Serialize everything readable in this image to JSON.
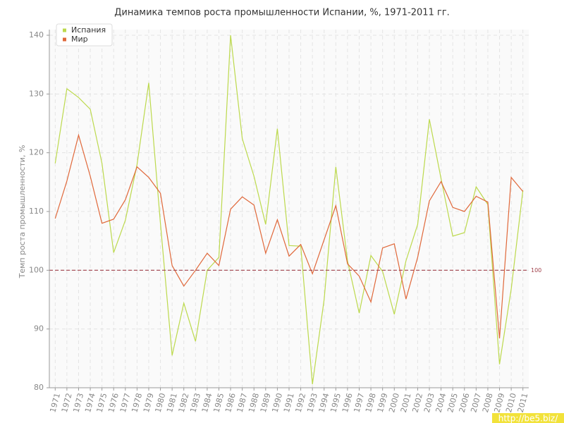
{
  "chart_data": {
    "type": "line",
    "title": "Динамика темпов роста промышленности Испании, %, 1971-2011 гг.",
    "y_label": "Темп роста промышленности, %",
    "x": [
      1971,
      1972,
      1973,
      1974,
      1975,
      1976,
      1977,
      1978,
      1979,
      1980,
      1981,
      1982,
      1983,
      1984,
      1985,
      1986,
      1987,
      1988,
      1989,
      1990,
      1991,
      1992,
      1993,
      1994,
      1995,
      1996,
      1997,
      1998,
      1999,
      2000,
      2001,
      2002,
      2003,
      2004,
      2005,
      2006,
      2007,
      2008,
      2009,
      2010,
      2011
    ],
    "xlim": [
      1970.5,
      2011.5
    ],
    "ylim": [
      80,
      140
    ],
    "yticks": [
      80,
      90,
      100,
      110,
      120,
      130,
      140
    ],
    "grid": true,
    "legend": "top-left",
    "reference_line": {
      "value": 100,
      "color": "#a0404a"
    },
    "series": [
      {
        "name": "Испания",
        "color": "#bcd94c",
        "values": [
          118.2,
          130.9,
          129.4,
          127.4,
          118.2,
          103,
          108.5,
          118,
          131.9,
          108,
          85.5,
          94.4,
          87.9,
          100,
          102.2,
          140,
          122.4,
          116,
          107.8,
          124.1,
          104.2,
          104.1,
          80.6,
          95,
          117.6,
          101.6,
          92.7,
          102.5,
          99.8,
          92.5,
          101.6,
          107.8,
          125.7,
          115.6,
          105.8,
          106.4,
          114.2,
          111.2,
          84,
          96.8,
          113.6
        ]
      },
      {
        "name": "Мир",
        "color": "#e0683a",
        "values": [
          108.8,
          115.2,
          123,
          116,
          108,
          108.7,
          112,
          117.6,
          115.8,
          113.1,
          100.8,
          97.3,
          100,
          102.9,
          100.8,
          110.4,
          112.5,
          111.1,
          102.9,
          108.6,
          102.4,
          104.4,
          99.4,
          105.2,
          111,
          101.1,
          99,
          94.6,
          103.8,
          104.5,
          95.1,
          102.2,
          111.8,
          115.1,
          110.7,
          110,
          112.6,
          111.6,
          88.4,
          115.8,
          113.4
        ]
      }
    ],
    "watermark": "http://be5.biz/"
  }
}
